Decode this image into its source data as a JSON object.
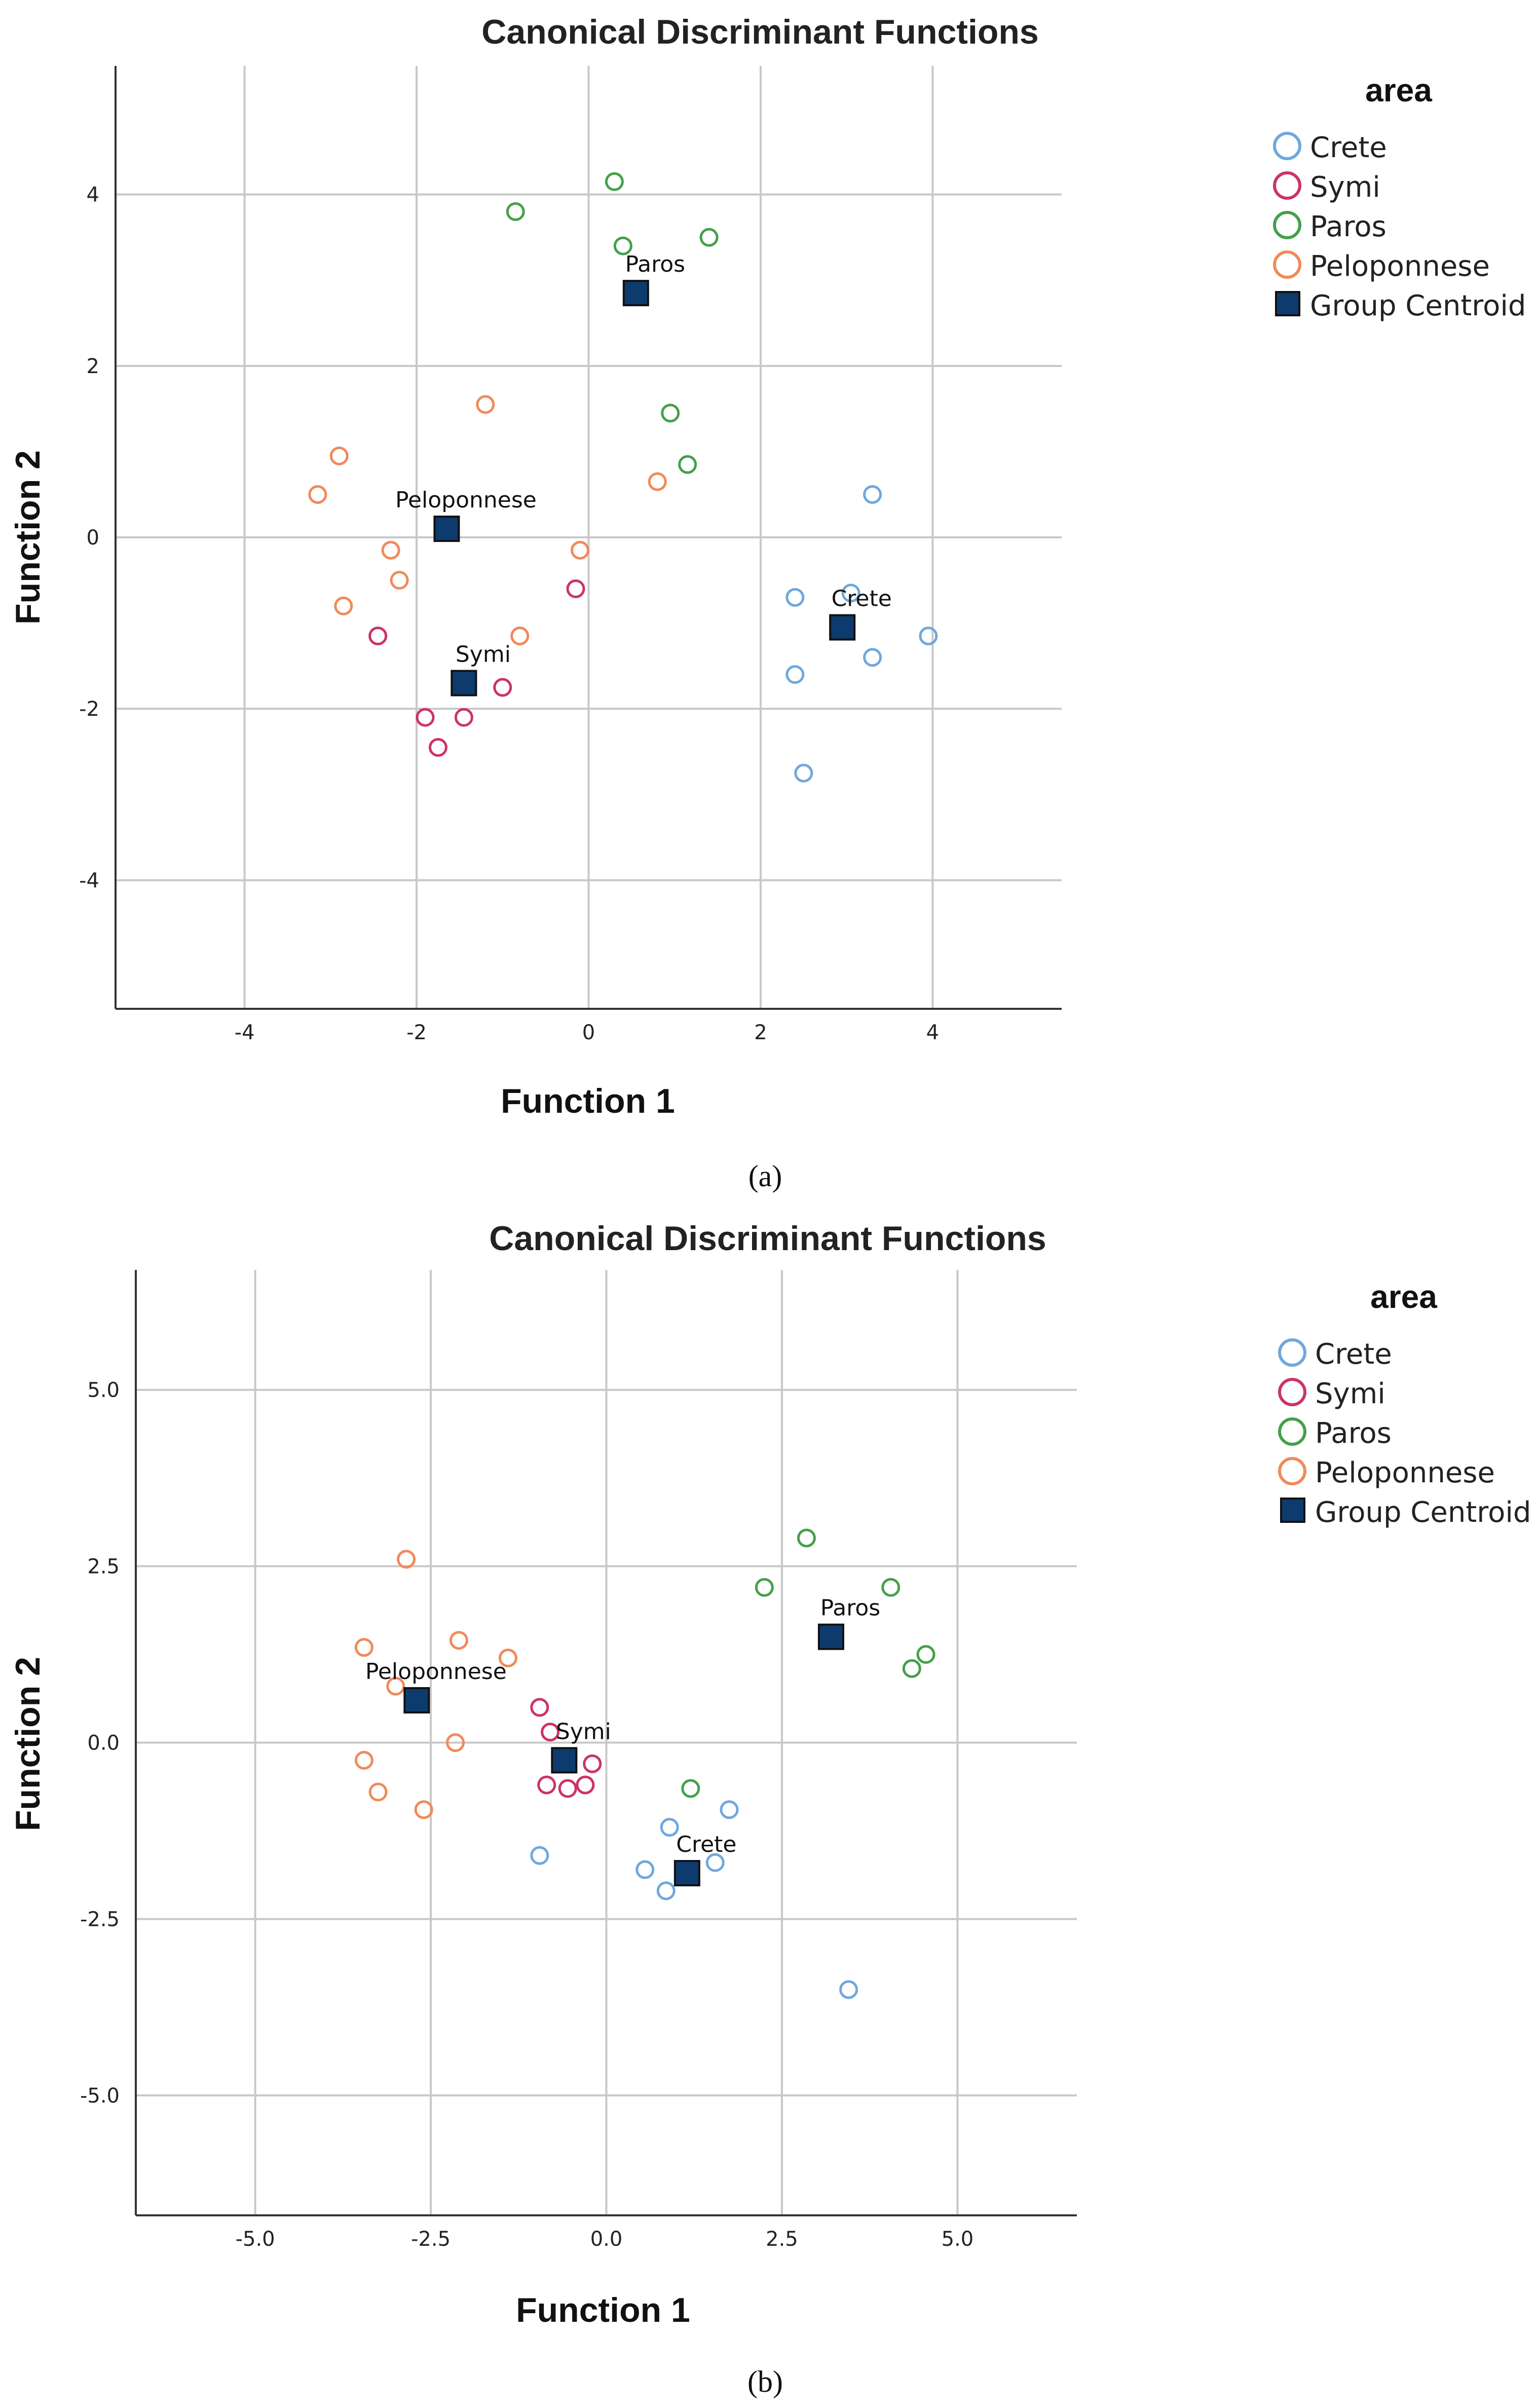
{
  "colors": {
    "Crete": "#6fa8dc",
    "Symi": "#cc3366",
    "Paros": "#44a04a",
    "Peloponnese": "#f08a5a",
    "Group Centroid": "#0d3b6e"
  },
  "chart_data": [
    {
      "panel_caption": "(a)",
      "type": "scatter",
      "title": "Canonical Discriminant Functions",
      "xlabel": "Function 1",
      "ylabel": "Function 2",
      "xlim": [
        -5.5,
        5.5
      ],
      "ylim": [
        -5.5,
        5.5
      ],
      "xticks": [
        -4,
        -2,
        0,
        2,
        4
      ],
      "yticks": [
        4,
        2,
        0,
        -2,
        -4
      ],
      "grid": true,
      "legend_title": "area",
      "legend_entries": [
        "Crete",
        "Symi",
        "Paros",
        "Peloponnese",
        "Group Centroid"
      ],
      "series": [
        {
          "name": "Crete",
          "points": [
            [
              3.3,
              0.5
            ],
            [
              2.4,
              -0.7
            ],
            [
              3.05,
              -0.65
            ],
            [
              3.95,
              -1.15
            ],
            [
              3.3,
              -1.4
            ],
            [
              2.4,
              -1.6
            ],
            [
              2.5,
              -2.75
            ]
          ]
        },
        {
          "name": "Symi",
          "points": [
            [
              -2.45,
              -1.15
            ],
            [
              -0.15,
              -0.6
            ],
            [
              -1.0,
              -1.75
            ],
            [
              -1.9,
              -2.1
            ],
            [
              -1.45,
              -2.1
            ],
            [
              -1.75,
              -2.45
            ]
          ]
        },
        {
          "name": "Paros",
          "points": [
            [
              -0.85,
              3.8
            ],
            [
              0.3,
              4.15
            ],
            [
              0.4,
              3.4
            ],
            [
              1.4,
              3.5
            ],
            [
              0.95,
              1.45
            ],
            [
              1.15,
              0.85
            ]
          ]
        },
        {
          "name": "Peloponnese",
          "points": [
            [
              -2.9,
              0.95
            ],
            [
              -3.15,
              0.5
            ],
            [
              -1.2,
              1.55
            ],
            [
              0.8,
              0.65
            ],
            [
              -2.3,
              -0.15
            ],
            [
              -2.2,
              -0.5
            ],
            [
              -2.85,
              -0.8
            ],
            [
              -0.1,
              -0.15
            ],
            [
              -0.8,
              -1.15
            ]
          ]
        }
      ],
      "centroids": [
        {
          "name": "Paros",
          "label": "Paros",
          "x": 0.55,
          "y": 2.85
        },
        {
          "name": "Peloponnese",
          "label": "Peloponnese",
          "x": -1.65,
          "y": 0.1
        },
        {
          "name": "Symi",
          "label": "Symi",
          "x": -1.45,
          "y": -1.7
        },
        {
          "name": "Crete",
          "label": "Crete",
          "x": 2.95,
          "y": -1.05
        }
      ]
    },
    {
      "panel_caption": "(b)",
      "type": "scatter",
      "title": "Canonical Discriminant Functions",
      "xlabel": "Function 1",
      "ylabel": "Function 2",
      "xlim": [
        -6.7,
        6.7
      ],
      "ylim": [
        -6.7,
        6.7
      ],
      "xticks": [
        -5.0,
        -2.5,
        0.0,
        2.5,
        5.0
      ],
      "yticks": [
        5.0,
        2.5,
        0.0,
        -2.5,
        -5.0
      ],
      "tick_labels_x": [
        "-5.0",
        "-2.5",
        "0.0",
        "2.5",
        "5.0"
      ],
      "tick_labels_y": [
        "5.0",
        "2.5",
        "0.0",
        "-2.5",
        "-5.0"
      ],
      "grid": true,
      "legend_title": "area",
      "legend_entries": [
        "Crete",
        "Symi",
        "Paros",
        "Peloponnese",
        "Group Centroid"
      ],
      "series": [
        {
          "name": "Crete",
          "points": [
            [
              -0.95,
              -1.6
            ],
            [
              0.9,
              -1.2
            ],
            [
              1.75,
              -0.95
            ],
            [
              0.55,
              -1.8
            ],
            [
              1.55,
              -1.7
            ],
            [
              0.85,
              -2.1
            ],
            [
              3.45,
              -3.5
            ]
          ]
        },
        {
          "name": "Symi",
          "points": [
            [
              -0.95,
              0.5
            ],
            [
              -0.8,
              0.15
            ],
            [
              -0.2,
              -0.3
            ],
            [
              -0.3,
              -0.6
            ],
            [
              -0.85,
              -0.6
            ],
            [
              -0.55,
              -0.65
            ]
          ]
        },
        {
          "name": "Paros",
          "points": [
            [
              2.85,
              2.9
            ],
            [
              2.25,
              2.2
            ],
            [
              4.05,
              2.2
            ],
            [
              4.55,
              1.25
            ],
            [
              4.35,
              1.05
            ],
            [
              1.2,
              -0.65
            ]
          ]
        },
        {
          "name": "Peloponnese",
          "points": [
            [
              -2.85,
              2.6
            ],
            [
              -2.1,
              1.45
            ],
            [
              -1.4,
              1.2
            ],
            [
              -3.45,
              1.35
            ],
            [
              -3.0,
              0.8
            ],
            [
              -2.15,
              0.0
            ],
            [
              -3.45,
              -0.25
            ],
            [
              -3.25,
              -0.7
            ],
            [
              -2.6,
              -0.95
            ]
          ]
        }
      ],
      "centroids": [
        {
          "name": "Paros",
          "label": "Paros",
          "x": 3.2,
          "y": 1.5
        },
        {
          "name": "Peloponnese",
          "label": "Peloponnese",
          "x": -2.7,
          "y": 0.6
        },
        {
          "name": "Symi",
          "label": "Symi",
          "x": -0.6,
          "y": -0.25
        },
        {
          "name": "Crete",
          "label": "Crete",
          "x": 1.15,
          "y": -1.85
        }
      ]
    }
  ]
}
